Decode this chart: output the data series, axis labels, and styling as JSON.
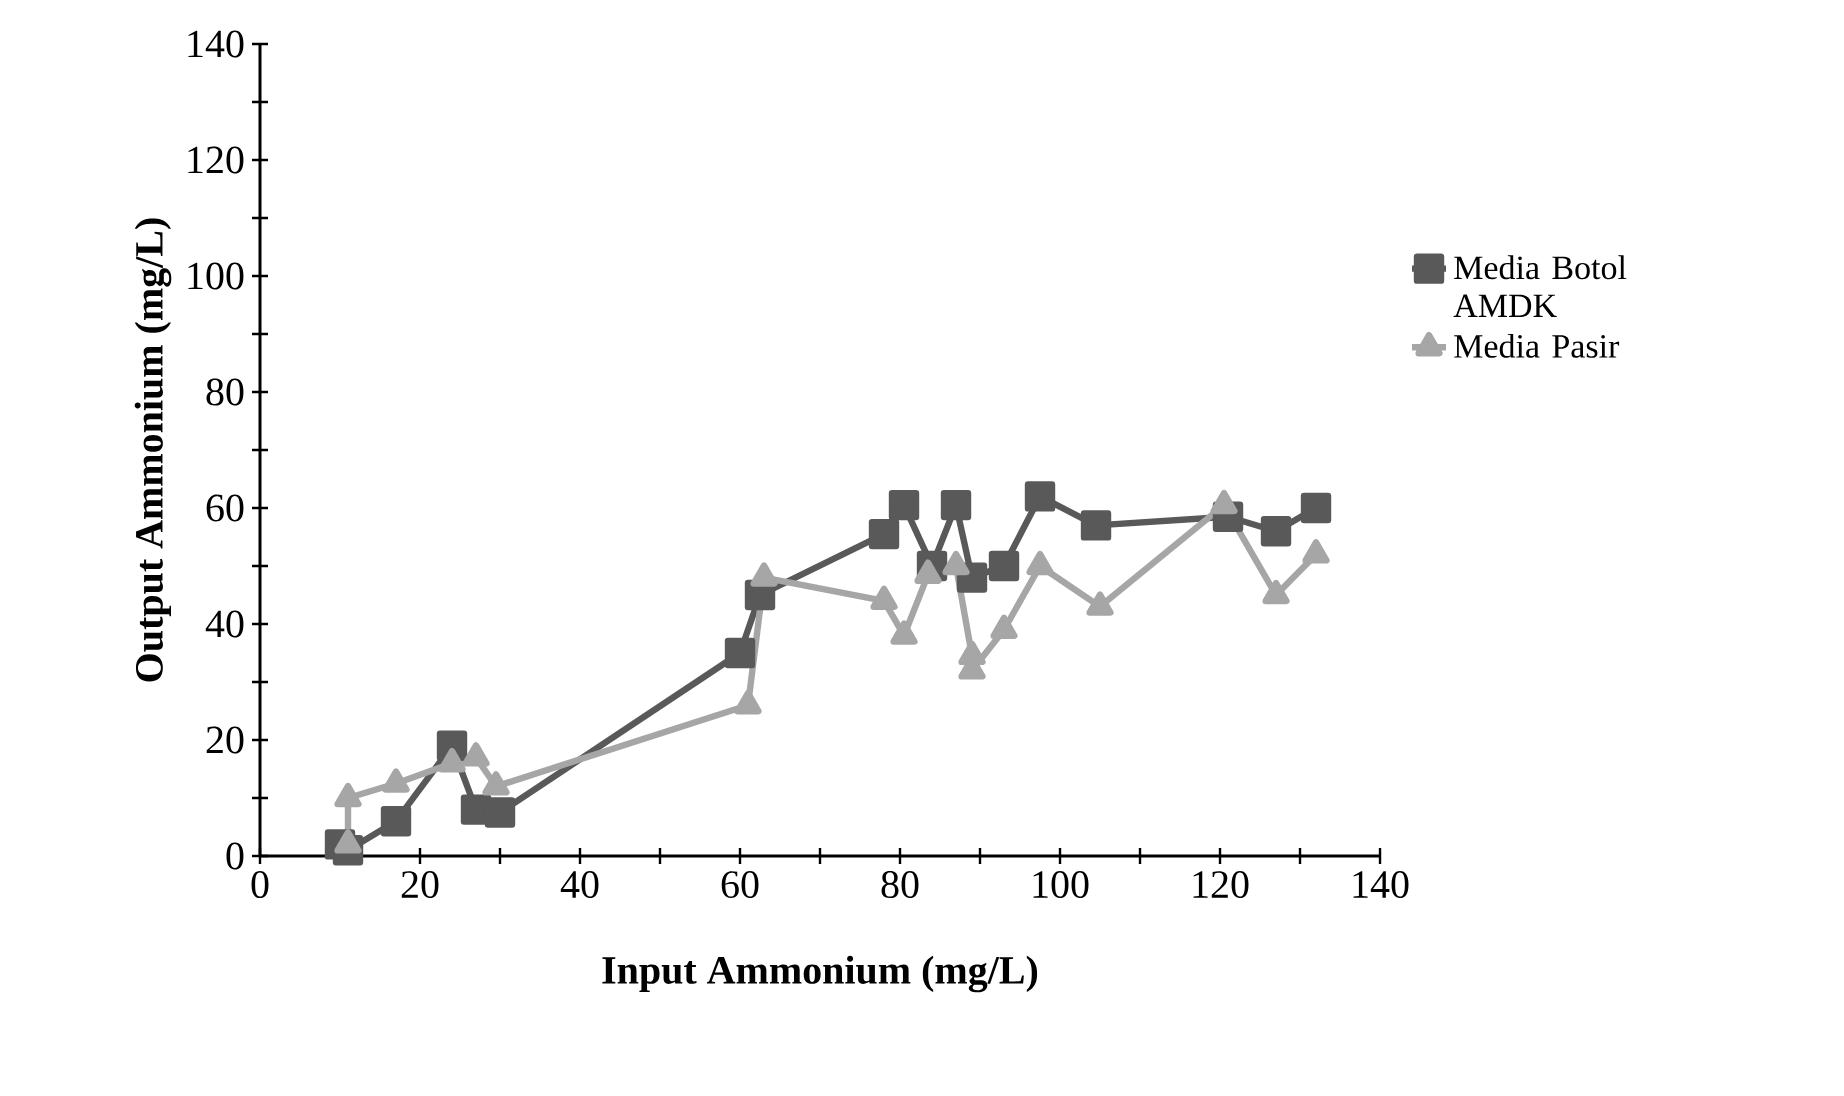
{
  "chart_data": {
    "type": "line",
    "xlabel": "Input Ammonium (mg/L)",
    "ylabel": "Output Ammonium (mg/L)",
    "xlim": [
      0,
      140
    ],
    "xticks": [
      0,
      20,
      40,
      60,
      80,
      100,
      120,
      140
    ],
    "ylim": [
      0,
      140
    ],
    "yticks": [
      0,
      20,
      40,
      60,
      80,
      100,
      120,
      140
    ],
    "legend": "right",
    "grid": false,
    "series": [
      {
        "name": "Media Botol AMDK",
        "color": "#595959",
        "marker": "square",
        "x": [
          10,
          11,
          17,
          24,
          27,
          30,
          60,
          62.5,
          78,
          80.5,
          84,
          87,
          89,
          93,
          97.5,
          104.5,
          121,
          127,
          132
        ],
        "values": [
          2,
          1,
          6,
          19,
          8,
          7.5,
          35,
          45,
          55.5,
          60.5,
          50,
          60.5,
          48,
          50,
          62,
          57,
          58.5,
          56,
          60
        ]
      },
      {
        "name": "Media Pasir",
        "color": "#a6a6a6",
        "marker": "triangle",
        "x": [
          11,
          11,
          17,
          24,
          27,
          29.5,
          61,
          63,
          78,
          80.5,
          83.5,
          87,
          89,
          89,
          93,
          97.5,
          105,
          120.5,
          127,
          132
        ],
        "values": [
          2,
          10,
          12.5,
          16,
          17,
          12,
          26,
          48,
          44,
          38,
          48.5,
          50,
          34.5,
          32,
          39,
          50,
          43,
          60.5,
          45,
          52
        ]
      }
    ]
  }
}
